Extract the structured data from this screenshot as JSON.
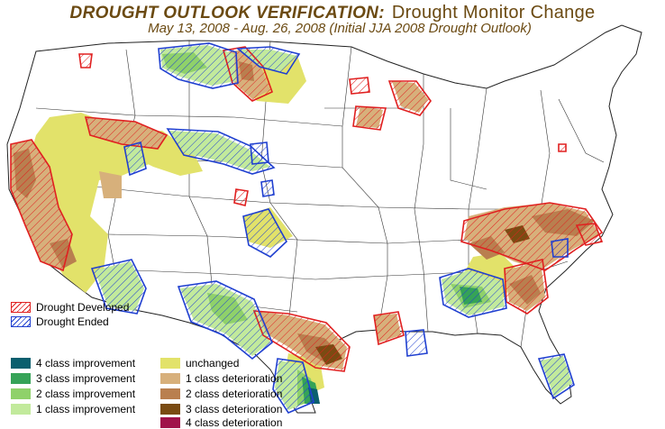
{
  "title": {
    "main": "DROUGHT OUTLOOK VERIFICATION:",
    "sub": "Drought Monitor Change",
    "dates": "May 13, 2008 - Aug. 26, 2008 (Initial JJA 2008 Drought Outlook)"
  },
  "legend": {
    "hatch": [
      {
        "label": "Drought Developed",
        "color": "#e02020"
      },
      {
        "label": "Drought Ended",
        "color": "#2040d0"
      }
    ],
    "classes_left": [
      {
        "label": "4 class improvement",
        "color": "#0a5f6e"
      },
      {
        "label": "3 class improvement",
        "color": "#35a357"
      },
      {
        "label": "2 class improvement",
        "color": "#8fd16a"
      },
      {
        "label": "1 class improvement",
        "color": "#c2ea9c"
      }
    ],
    "classes_right": [
      {
        "label": "unchanged",
        "color": "#e2e26a"
      },
      {
        "label": "1 class deterioration",
        "color": "#d7b07b"
      },
      {
        "label": "2 class deterioration",
        "color": "#b97f4f"
      },
      {
        "label": "3 class deterioration",
        "color": "#7a4b12"
      },
      {
        "label": "4 class deterioration",
        "color": "#a0124a"
      }
    ]
  },
  "colors": {
    "unchanged": "#e2e26a",
    "deterioration_1": "#d7b07b",
    "deterioration_2": "#b97f4f",
    "deterioration_3": "#7a4b12",
    "improvement_1": "#c2ea9c",
    "improvement_2": "#8fd16a",
    "improvement_3": "#35a357",
    "improvement_4": "#0a5f6e",
    "developed_hatch": "#e02020",
    "ended_hatch": "#2040d0"
  }
}
